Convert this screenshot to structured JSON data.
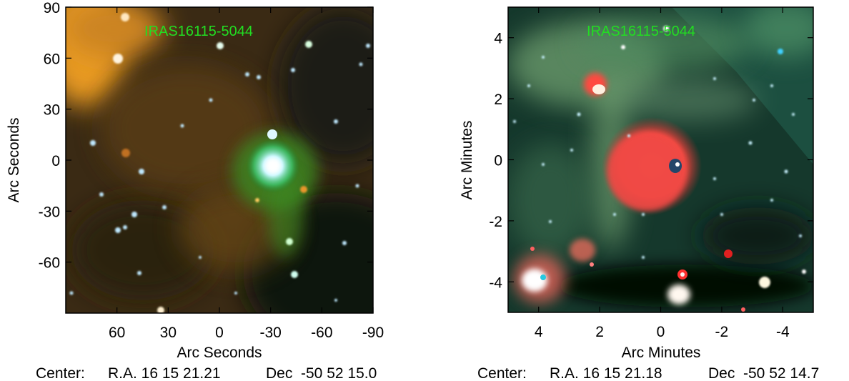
{
  "panels": [
    {
      "object_label": "IRAS16115-5044",
      "x_axis": {
        "title": "Arc Seconds",
        "range": [
          90,
          -90
        ],
        "ticks": [
          60,
          30,
          0,
          -30,
          -60,
          -90
        ],
        "tick_labels": [
          "60",
          "30",
          "0",
          "-30",
          "-60",
          "-90"
        ]
      },
      "y_axis": {
        "title": "Arc Seconds",
        "range": [
          -90,
          90
        ],
        "ticks": [
          90,
          60,
          30,
          0,
          -30,
          -60
        ],
        "tick_labels": [
          "90",
          "60",
          "30",
          "0",
          "-30",
          "-60"
        ]
      },
      "center": {
        "prefix": "Center:",
        "ra": "R.A. 16 15 21.21",
        "dec": "Dec  -50 52 15.0"
      }
    },
    {
      "object_label": "IRAS16115-5044",
      "x_axis": {
        "title": "Arc Minutes",
        "range": [
          5,
          -5
        ],
        "ticks": [
          4,
          2,
          0,
          -2,
          -4
        ],
        "tick_labels": [
          "4",
          "2",
          "0",
          "-2",
          "-4"
        ]
      },
      "y_axis": {
        "title": "Arc Minutes",
        "range": [
          -5,
          5
        ],
        "ticks": [
          4,
          2,
          0,
          -2,
          -4
        ],
        "tick_labels": [
          "4",
          "2",
          "0",
          "-2",
          "-4"
        ]
      },
      "center": {
        "prefix": "Center:",
        "ra": "R.A. 16 15 21.18",
        "dec": "Dec  -50 52 14.7"
      }
    }
  ]
}
